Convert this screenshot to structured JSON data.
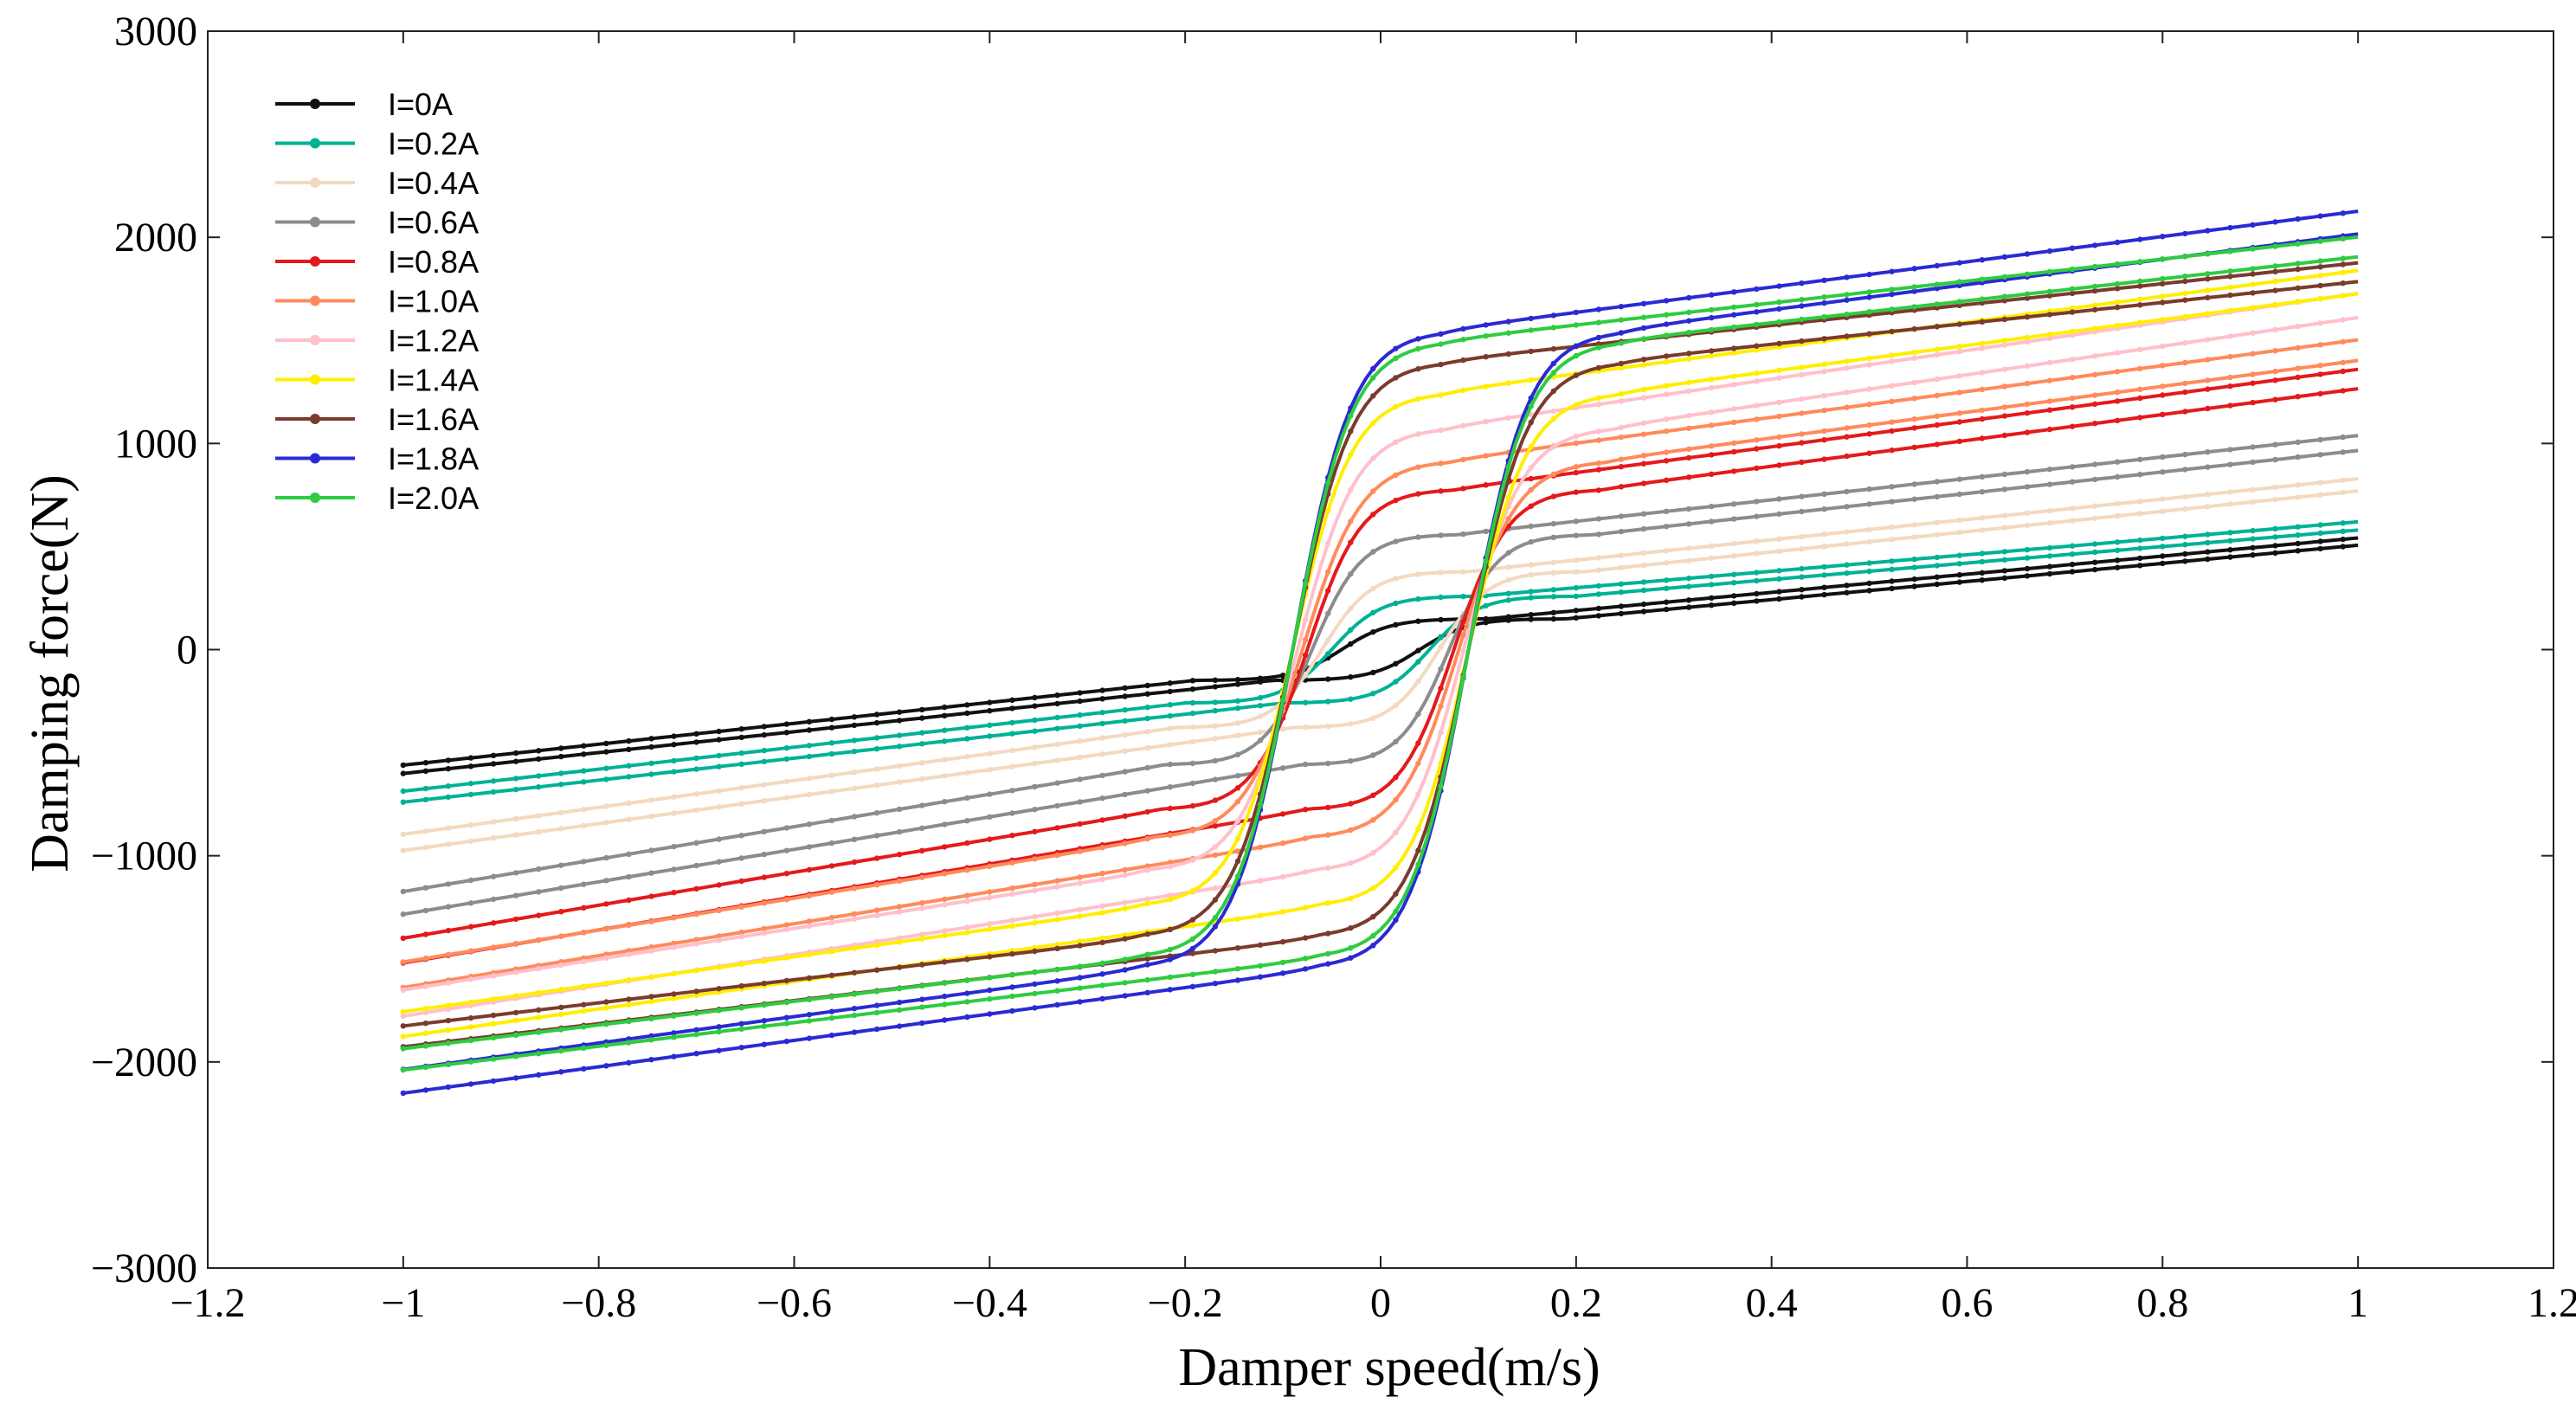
{
  "chart_data": {
    "type": "line",
    "title": "",
    "xlabel": "Damper speed(m/s)",
    "ylabel": "Damping force(N)",
    "xlim": [
      -1.2,
      1.2
    ],
    "ylim": [
      -3000,
      3000
    ],
    "xticks": [
      -1.2,
      -1,
      -0.8,
      -0.6,
      -0.4,
      -0.2,
      0,
      0.2,
      0.4,
      0.6,
      0.8,
      1,
      1.2
    ],
    "xtick_labels": [
      "−1.2",
      "−1",
      "−0.8",
      "−0.6",
      "−0.4",
      "−0.2",
      "0",
      "0.2",
      "0.4",
      "0.6",
      "0.8",
      "1",
      "1.2"
    ],
    "yticks": [
      -3000,
      -2000,
      -1000,
      0,
      1000,
      2000,
      3000
    ],
    "ytick_labels": [
      "−3000",
      "−2000",
      "−1000",
      "0",
      "1000",
      "2000",
      "3000"
    ],
    "grid": false,
    "legend_position": "top-left",
    "curve_model": "hysteresis loop: upper branch (decreasing speed) and lower branch (increasing speed) between speed -1 and 1",
    "series": [
      {
        "name": "I=0A",
        "color": "#111111",
        "force_at_min_speed": -530,
        "force_at_max_speed": 480,
        "plateau_force": 150,
        "transition_width": 0.05,
        "loop_offset": 0.04
      },
      {
        "name": "I=0.2A",
        "color": "#00b294",
        "force_at_min_speed": -660,
        "force_at_max_speed": 560,
        "plateau_force": 260,
        "transition_width": 0.05,
        "loop_offset": 0.05
      },
      {
        "name": "I=0.4A",
        "color": "#f2d9c0",
        "force_at_min_speed": -870,
        "force_at_max_speed": 750,
        "plateau_force": 380,
        "transition_width": 0.05,
        "loop_offset": 0.06
      },
      {
        "name": "I=0.6A",
        "color": "#8c8c8c",
        "force_at_min_speed": -1150,
        "force_at_max_speed": 950,
        "plateau_force": 560,
        "transition_width": 0.05,
        "loop_offset": 0.07
      },
      {
        "name": "I=0.8A",
        "color": "#e31a1c",
        "force_at_min_speed": -1380,
        "force_at_max_speed": 1250,
        "plateau_force": 780,
        "transition_width": 0.055,
        "loop_offset": 0.075
      },
      {
        "name": "I=1.0A",
        "color": "#ff8a5c",
        "force_at_min_speed": -1500,
        "force_at_max_speed": 1390,
        "plateau_force": 920,
        "transition_width": 0.06,
        "loop_offset": 0.08
      },
      {
        "name": "I=1.2A",
        "color": "#ffc0cb",
        "force_at_min_speed": -1640,
        "force_at_max_speed": 1600,
        "plateau_force": 1080,
        "transition_width": 0.06,
        "loop_offset": 0.085
      },
      {
        "name": "I=1.4A",
        "color": "#ffee00",
        "force_at_min_speed": -1750,
        "force_at_max_speed": 1720,
        "plateau_force": 1250,
        "transition_width": 0.06,
        "loop_offset": 0.09
      },
      {
        "name": "I=1.6A",
        "color": "#7a3b2e",
        "force_at_min_speed": -1820,
        "force_at_max_speed": 1780,
        "plateau_force": 1400,
        "transition_width": 0.06,
        "loop_offset": 0.09
      },
      {
        "name": "I=1.8A",
        "color": "#2a2ad4",
        "force_at_min_speed": -2030,
        "force_at_max_speed": 2010,
        "plateau_force": 1550,
        "transition_width": 0.06,
        "loop_offset": 0.09
      },
      {
        "name": "I=2.0A",
        "color": "#2ecc40",
        "force_at_min_speed": -1930,
        "force_at_max_speed": 1900,
        "plateau_force": 1500,
        "transition_width": 0.06,
        "loop_offset": 0.09
      }
    ]
  }
}
